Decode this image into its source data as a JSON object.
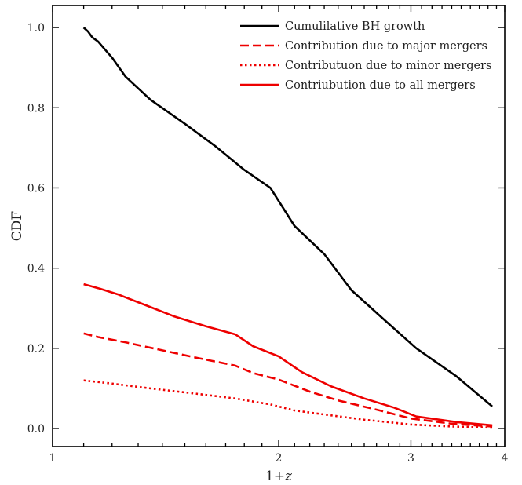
{
  "chart_data": {
    "type": "line",
    "xlabel": "1+z",
    "ylabel": "CDF",
    "xscale": "log",
    "xlim": [
      1,
      4
    ],
    "ylim": [
      -0.045,
      1.055
    ],
    "x_ticks": [
      1,
      2,
      3,
      4
    ],
    "y_ticks": [
      0.0,
      0.2,
      0.4,
      0.6,
      0.8,
      1.0
    ],
    "y_tick_labels": [
      "0.0",
      "0.2",
      "0.4",
      "0.6",
      "0.8",
      "1.0"
    ],
    "legend_position": "top-right",
    "grid": false,
    "series": [
      {
        "name": "Cumulilative BH growth",
        "color": "#000000",
        "style": "solid",
        "x": [
          1.1,
          1.115,
          1.13,
          1.15,
          1.2,
          1.25,
          1.35,
          1.5,
          1.65,
          1.8,
          1.95,
          2.1,
          2.3,
          2.5,
          2.75,
          3.05,
          3.45,
          3.85
        ],
        "y": [
          1.0,
          0.99,
          0.975,
          0.965,
          0.925,
          0.878,
          0.82,
          0.76,
          0.703,
          0.645,
          0.6,
          0.505,
          0.435,
          0.345,
          0.275,
          0.2,
          0.13,
          0.055
        ]
      },
      {
        "name": "Contribution due to major mergers",
        "color": "#ee0000",
        "style": "dashed",
        "x": [
          1.1,
          1.15,
          1.25,
          1.4,
          1.55,
          1.75,
          1.85,
          2.0,
          2.2,
          2.4,
          2.7,
          3.0,
          3.4,
          3.85
        ],
        "y": [
          0.237,
          0.228,
          0.215,
          0.195,
          0.177,
          0.157,
          0.138,
          0.122,
          0.092,
          0.07,
          0.047,
          0.025,
          0.012,
          0.005
        ]
      },
      {
        "name": "Contributuon due to minor mergers",
        "color": "#ee0000",
        "style": "dotted",
        "x": [
          1.1,
          1.2,
          1.35,
          1.55,
          1.75,
          1.95,
          2.1,
          2.3,
          2.6,
          3.0,
          3.4,
          3.85
        ],
        "y": [
          0.12,
          0.112,
          0.1,
          0.087,
          0.075,
          0.06,
          0.045,
          0.035,
          0.022,
          0.01,
          0.005,
          0.002
        ]
      },
      {
        "name": "Contriubution due to all mergers",
        "color": "#ee0000",
        "style": "solid",
        "x": [
          1.1,
          1.12,
          1.15,
          1.22,
          1.32,
          1.45,
          1.6,
          1.75,
          1.85,
          2.0,
          2.15,
          2.35,
          2.6,
          2.85,
          3.05,
          3.45,
          3.85
        ],
        "y": [
          0.36,
          0.356,
          0.35,
          0.335,
          0.31,
          0.28,
          0.255,
          0.235,
          0.205,
          0.18,
          0.14,
          0.105,
          0.075,
          0.052,
          0.03,
          0.016,
          0.008
        ]
      }
    ]
  }
}
